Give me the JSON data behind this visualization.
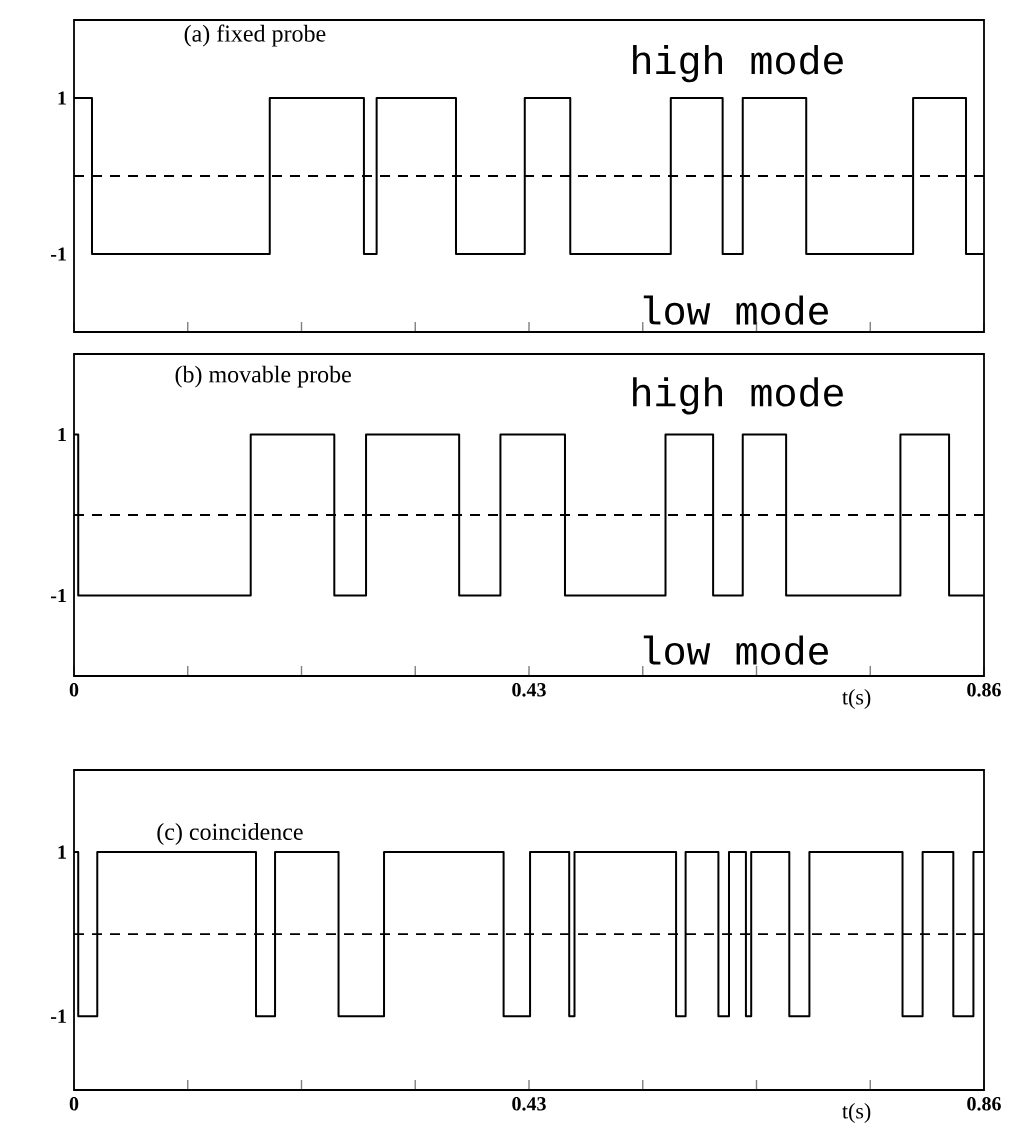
{
  "chart_data": [
    {
      "type": "step",
      "title": "(a) fixed probe",
      "annotations": [
        "high mode",
        "low mode"
      ],
      "x": [
        0,
        0.017,
        0.185,
        0.274,
        0.286,
        0.361,
        0.426,
        0.469,
        0.564,
        0.613,
        0.632,
        0.692,
        0.793,
        0.843,
        0.86
      ],
      "values": [
        1,
        -1,
        1,
        -1,
        1,
        -1,
        1,
        -1,
        1,
        -1,
        1,
        -1,
        1,
        -1,
        -1
      ],
      "color": "#000000",
      "xlim": [
        0,
        0.86
      ],
      "ylim": [
        -2,
        2
      ],
      "xticks": [
        {
          "value": 0,
          "label": null
        },
        {
          "value": 0.1075,
          "label": null
        },
        {
          "value": 0.215,
          "label": null
        },
        {
          "value": 0.3225,
          "label": null
        },
        {
          "value": 0.43,
          "label": null
        },
        {
          "value": 0.5375,
          "label": null
        },
        {
          "value": 0.645,
          "label": null
        },
        {
          "value": 0.7525,
          "label": null
        },
        {
          "value": 0.86,
          "label": null
        }
      ],
      "yticks": [
        1,
        -1
      ],
      "tick_labels": "y",
      "ref_lines": [
        {
          "axis": "y",
          "value": 0,
          "line_style": "dashed"
        }
      ]
    },
    {
      "type": "step",
      "title": "(b) movable probe",
      "xlabel": "t(s)",
      "annotations": [
        "high mode",
        "low mode"
      ],
      "x": [
        0,
        0.004,
        0.167,
        0.246,
        0.276,
        0.364,
        0.403,
        0.464,
        0.559,
        0.604,
        0.632,
        0.673,
        0.781,
        0.827,
        0.86
      ],
      "values": [
        1,
        -1,
        1,
        -1,
        1,
        -1,
        1,
        -1,
        1,
        -1,
        1,
        -1,
        1,
        -1,
        -1
      ],
      "color": "#000000",
      "xlim": [
        0,
        0.86
      ],
      "ylim": [
        -2,
        2
      ],
      "xticks": [
        0,
        {
          "value": 0.1075,
          "label": null
        },
        {
          "value": 0.215,
          "label": null
        },
        {
          "value": 0.3225,
          "label": null
        },
        0.43,
        {
          "value": 0.5375,
          "label": null
        },
        {
          "value": 0.645,
          "label": null
        },
        {
          "value": 0.7525,
          "label": null
        },
        0.86
      ],
      "yticks": [
        1,
        -1
      ],
      "ref_lines": [
        {
          "axis": "y",
          "value": 0,
          "line_style": "dashed"
        }
      ]
    },
    {
      "type": "step",
      "title": "(c) coincidence",
      "xlabel": "t(s)",
      "x": [
        0,
        0.004,
        0.022,
        0.172,
        0.19,
        0.25,
        0.293,
        0.406,
        0.431,
        0.468,
        0.473,
        0.569,
        0.578,
        0.609,
        0.619,
        0.635,
        0.64,
        0.676,
        0.695,
        0.783,
        0.802,
        0.831,
        0.85,
        0.86
      ],
      "values": [
        1,
        -1,
        1,
        -1,
        1,
        -1,
        1,
        -1,
        1,
        -1,
        1,
        -1,
        1,
        -1,
        1,
        -1,
        1,
        -1,
        1,
        -1,
        1,
        -1,
        1,
        1
      ],
      "color": "#000000",
      "xlim": [
        0,
        0.86
      ],
      "ylim": [
        -1.9,
        2
      ],
      "xticks": [
        0,
        {
          "value": 0.1075,
          "label": null
        },
        {
          "value": 0.215,
          "label": null
        },
        {
          "value": 0.3225,
          "label": null
        },
        0.43,
        {
          "value": 0.5375,
          "label": null
        },
        {
          "value": 0.645,
          "label": null
        },
        {
          "value": 0.7525,
          "label": null
        },
        0.86
      ],
      "yticks": [
        1,
        -1
      ],
      "ref_lines": [
        {
          "axis": "y",
          "value": 0,
          "line_style": "dashed"
        }
      ]
    }
  ]
}
